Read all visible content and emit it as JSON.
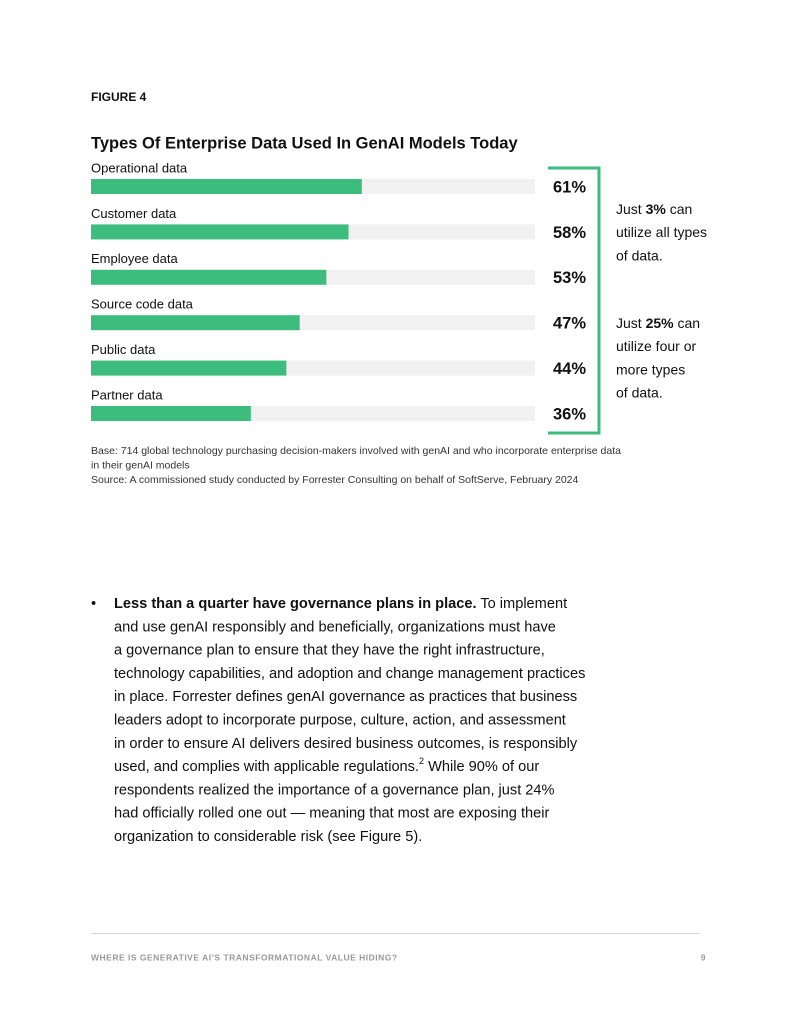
{
  "figure_label": "FIGURE 4",
  "chart_data": {
    "type": "bar",
    "orientation": "horizontal",
    "title": "Types Of Enterprise Data Used In GenAI Models Today",
    "categories": [
      "Operational data",
      "Customer data",
      "Employee data",
      "Source code data",
      "Public data",
      "Partner data"
    ],
    "values": [
      61,
      58,
      53,
      47,
      44,
      36
    ],
    "value_labels": [
      "61%",
      "58%",
      "53%",
      "47%",
      "44%",
      "36%"
    ],
    "color": "#3dbd7d",
    "track_color": "#f1f1f1",
    "xlim": [
      0,
      100
    ]
  },
  "callouts": [
    {
      "lead": "Just ",
      "figure": "3%",
      "rest": " can",
      "lines": [
        "utilize all types",
        "of data."
      ]
    },
    {
      "lead": "Just ",
      "figure": "25%",
      "rest": " can",
      "lines": [
        "utilize four or",
        "more types",
        "of data."
      ]
    }
  ],
  "notes": [
    "Base: 714 global technology purchasing decision-makers involved with genAI and who incorporate enterprise data",
    "in their genAI models",
    "Source: A commissioned study conducted by Forrester Consulting on behalf of SoftServe, February 2024"
  ],
  "body": {
    "bullet": "•",
    "lead": "Less than a quarter have governance plans in place.",
    "lines": [
      " To implement",
      "and use genAI responsibly and beneficially, organizations must have",
      "a governance plan to ensure that they have the right infrastructure,",
      "technology capabilities, and adoption and change management practices",
      "in place. Forrester defines genAI governance as practices that business",
      "leaders adopt to incorporate purpose, culture, action, and assessment",
      "in order to ensure AI delivers desired business outcomes, is responsibly",
      "used, and complies with applicable regulations.",
      "respondents realized the importance of a governance plan, just 24%",
      "had officially rolled one out — meaning that most are exposing their",
      "organization to considerable risk (see Figure 5)."
    ],
    "footnote_line": 7,
    "footnote_ref": "2",
    "after_footnote": " While 90% of our"
  },
  "footer": {
    "text": "WHERE IS GENERATIVE AI’S TRANSFORMATIONAL VALUE HIDING?",
    "page": "9"
  }
}
